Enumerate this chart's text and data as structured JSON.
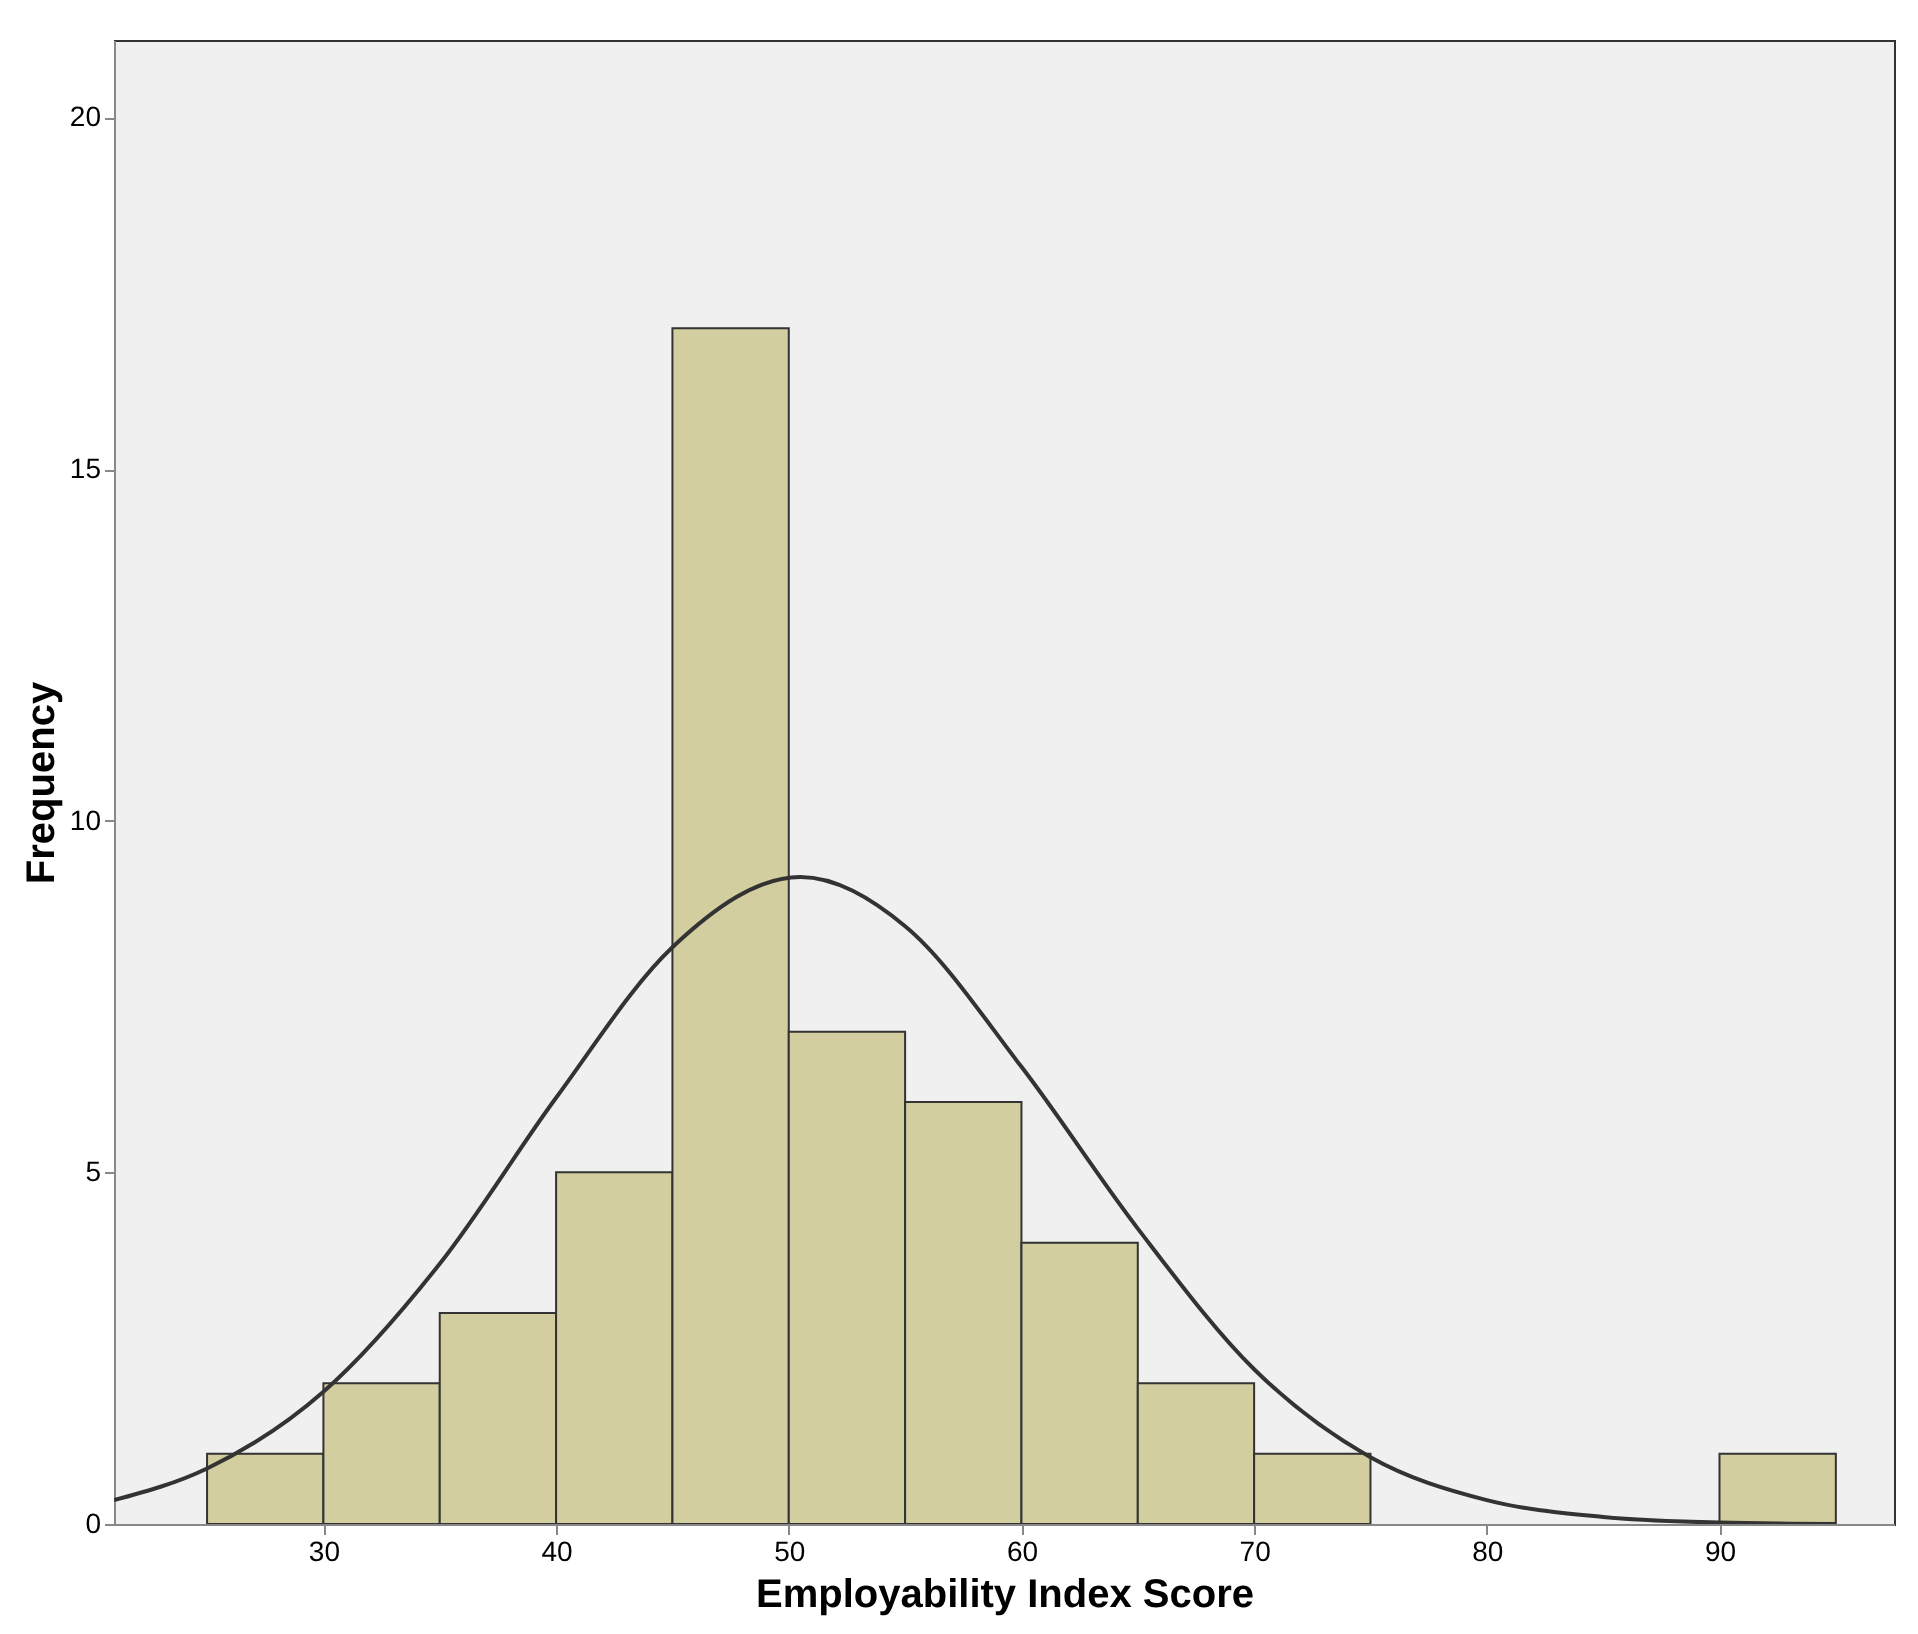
{
  "chart_data": {
    "type": "histogram",
    "xlabel": "Employability Index Score",
    "ylabel": "Frequency",
    "bins": [
      25,
      30,
      35,
      40,
      45,
      50,
      55,
      60,
      65,
      70,
      75,
      80,
      85,
      90,
      95
    ],
    "values": [
      1,
      2,
      3,
      5,
      17,
      7,
      6,
      4,
      2,
      1,
      0,
      0,
      0,
      1
    ],
    "color": "#d3cea0",
    "series": [
      {
        "type": "line",
        "color": "#333333",
        "x": [
          21,
          25,
          30,
          35,
          40,
          45,
          50.5,
          55,
          60,
          65,
          70,
          75,
          80,
          85,
          90,
          95
        ],
        "values": [
          0.34,
          0.79,
          1.88,
          3.7,
          6.06,
          8.2,
          9.2,
          8.5,
          6.5,
          4.2,
          2.2,
          0.95,
          0.34,
          0.1,
          0.02,
          0.0
        ]
      }
    ],
    "xlim": [
      21,
      97.5
    ],
    "ylim": [
      0,
      21.1
    ],
    "xticks": [
      30,
      40,
      50,
      60,
      70,
      80,
      90
    ],
    "yticks": [
      0,
      5,
      10,
      15,
      20
    ],
    "grid": false
  }
}
